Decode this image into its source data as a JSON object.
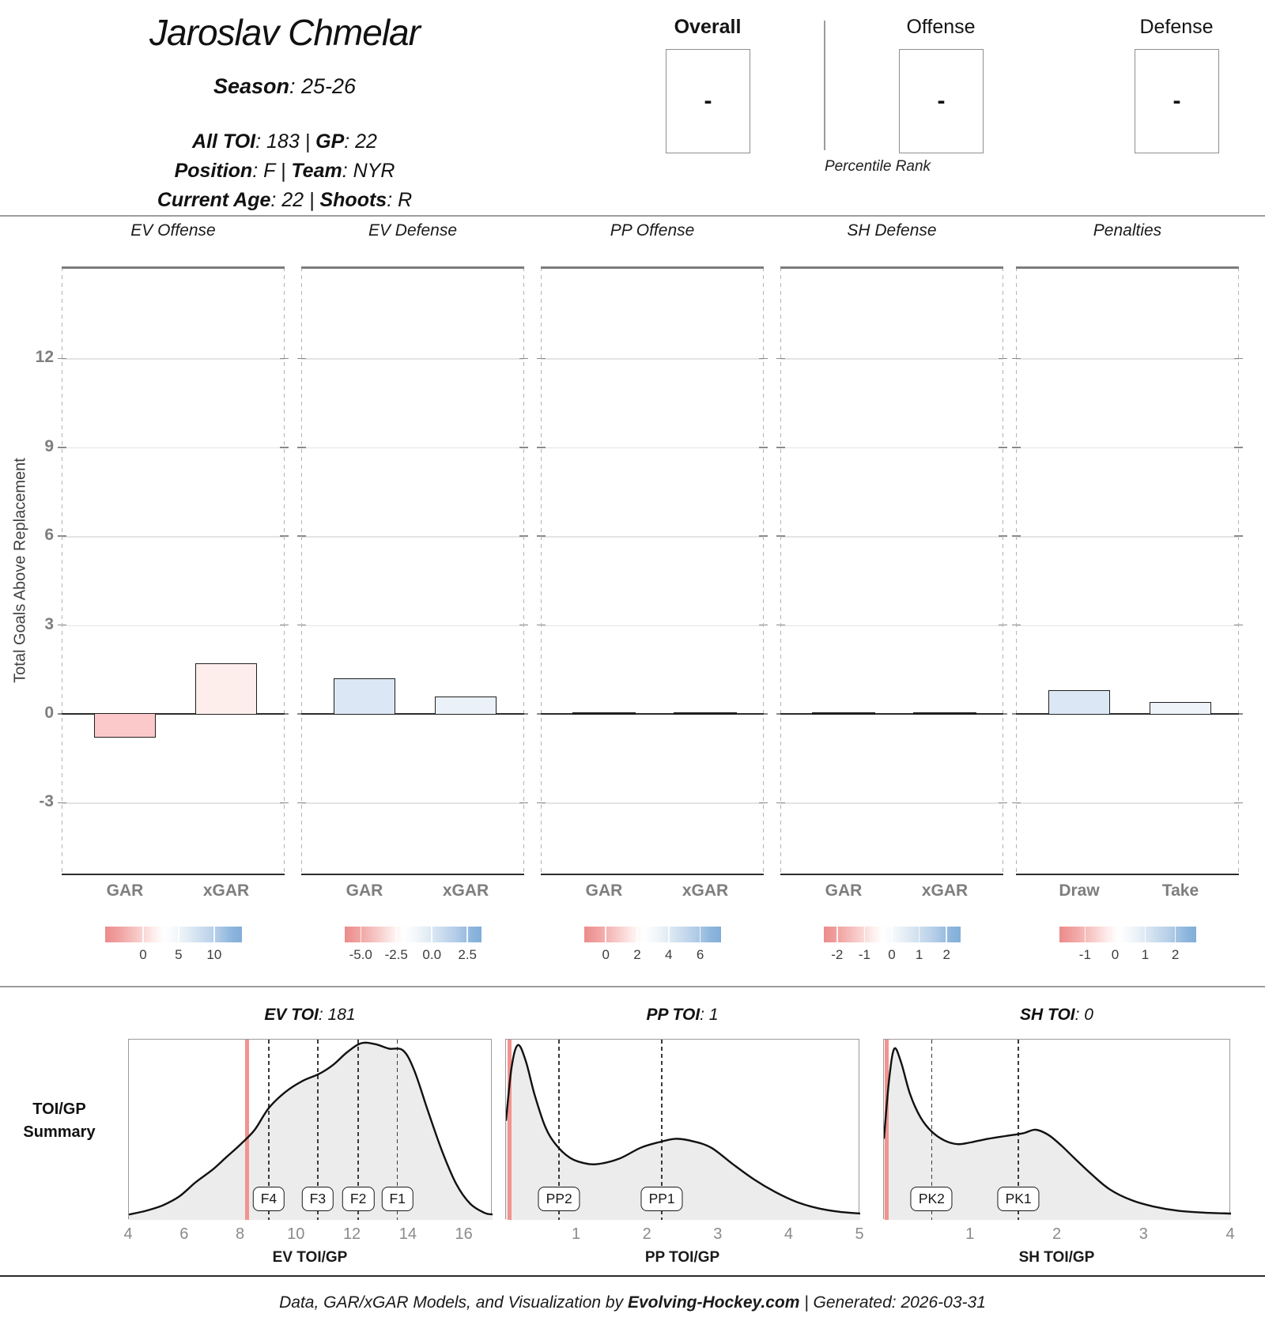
{
  "header": {
    "player_name": "Jaroslav Chmelar",
    "lines": [
      {
        "parts": [
          {
            "t": "Season",
            "b": 1
          },
          {
            "t": ": 25-26",
            "b": 0
          }
        ]
      },
      {
        "parts": [
          {
            "t": "All TOI",
            "b": 1
          },
          {
            "t": ": 183 ",
            "b": 0
          },
          {
            "t": "|",
            "b": 0
          },
          {
            "t": " ",
            "b": 0
          },
          {
            "t": "GP",
            "b": 1
          },
          {
            "t": ": 22",
            "b": 0
          }
        ]
      },
      {
        "parts": [
          {
            "t": "Position",
            "b": 1
          },
          {
            "t": ": F ",
            "b": 0
          },
          {
            "t": "|",
            "b": 0
          },
          {
            "t": " ",
            "b": 0
          },
          {
            "t": "Team",
            "b": 1
          },
          {
            "t": ": NYR",
            "b": 0
          }
        ]
      },
      {
        "parts": [
          {
            "t": "Current Age",
            "b": 1
          },
          {
            "t": ": 22 ",
            "b": 0
          },
          {
            "t": "|",
            "b": 0
          },
          {
            "t": " ",
            "b": 0
          },
          {
            "t": "Shoots",
            "b": 1
          },
          {
            "t": ": R",
            "b": 0
          }
        ]
      }
    ]
  },
  "percentile": {
    "caption": "Percentile Rank",
    "boxes": [
      {
        "label": "Overall",
        "value": "-",
        "bold": true
      },
      {
        "label": "Offense",
        "value": "-",
        "bold": false
      },
      {
        "label": "Defense",
        "value": "-",
        "bold": false
      }
    ]
  },
  "y_axis": {
    "title": "Total Goals Above Replacement",
    "ticks": [
      12,
      9,
      6,
      3,
      0,
      -3
    ],
    "ylim": [
      -5.4,
      15.1
    ]
  },
  "toi_summary_label": [
    "TOI/GP",
    "Summary"
  ],
  "footer": {
    "prefix": "Data, GAR/xGAR Models, and Visualization by ",
    "brand": "Evolving-Hockey.com",
    "suffix": " | Generated: 2026-03-31"
  },
  "chart_data": [
    {
      "type": "bar",
      "panel": "EV Offense",
      "categories": [
        "GAR",
        "xGAR"
      ],
      "values": [
        -0.8,
        1.7
      ],
      "bar_colors": [
        "#fbc9c9",
        "#fdeeec"
      ],
      "legend": {
        "labels": [
          "0",
          "5",
          "10"
        ],
        "fracs": [
          0.28,
          0.54,
          0.8
        ]
      }
    },
    {
      "type": "bar",
      "panel": "EV Defense",
      "categories": [
        "GAR",
        "xGAR"
      ],
      "values": [
        1.2,
        0.6
      ],
      "bar_colors": [
        "#dbe7f4",
        "#ebf1f8"
      ],
      "legend": {
        "labels": [
          "-5.0",
          "-2.5",
          "0.0",
          "2.5"
        ],
        "fracs": [
          0.12,
          0.38,
          0.64,
          0.9
        ]
      }
    },
    {
      "type": "bar",
      "panel": "PP Offense",
      "categories": [
        "GAR",
        "xGAR"
      ],
      "values": [
        0,
        0
      ],
      "bar_colors": [
        null,
        null
      ],
      "legend": {
        "labels": [
          "0",
          "2",
          "4",
          "6"
        ],
        "fracs": [
          0.16,
          0.39,
          0.62,
          0.85
        ]
      }
    },
    {
      "type": "bar",
      "panel": "SH Defense",
      "categories": [
        "GAR",
        "xGAR"
      ],
      "values": [
        0,
        0
      ],
      "bar_colors": [
        null,
        null
      ],
      "legend": {
        "labels": [
          "-2",
          "-1",
          "0",
          "1",
          "2"
        ],
        "fracs": [
          0.1,
          0.3,
          0.5,
          0.7,
          0.9
        ]
      }
    },
    {
      "type": "bar",
      "panel": "Penalties",
      "categories": [
        "Draw",
        "Take"
      ],
      "values": [
        0.8,
        0.4
      ],
      "bar_colors": [
        "#dbe7f4",
        "#eef3f9"
      ],
      "legend": {
        "labels": [
          "-1",
          "0",
          "1",
          "2"
        ],
        "fracs": [
          0.19,
          0.41,
          0.63,
          0.85
        ]
      }
    },
    {
      "type": "area",
      "panel": "EV TOI",
      "value": "181",
      "xlabel": "EV TOI/GP",
      "xticks": [
        4,
        6,
        8,
        10,
        12,
        14,
        16
      ],
      "xlim": [
        4,
        17
      ],
      "player_line": 8.23,
      "markers": [
        {
          "label": "F4",
          "x": 9.0
        },
        {
          "label": "F3",
          "x": 10.75
        },
        {
          "label": "F2",
          "x": 12.2
        },
        {
          "label": "F1",
          "x": 13.6
        }
      ],
      "points": [
        [
          4,
          0.03
        ],
        [
          4.6,
          0.05
        ],
        [
          5.2,
          0.08
        ],
        [
          5.8,
          0.13
        ],
        [
          6.4,
          0.21
        ],
        [
          7.0,
          0.28
        ],
        [
          7.5,
          0.35
        ],
        [
          8.0,
          0.42
        ],
        [
          8.5,
          0.5
        ],
        [
          9.0,
          0.62
        ],
        [
          9.6,
          0.71
        ],
        [
          10.2,
          0.77
        ],
        [
          10.8,
          0.81
        ],
        [
          11.3,
          0.86
        ],
        [
          11.8,
          0.93
        ],
        [
          12.3,
          0.98
        ],
        [
          12.8,
          0.975
        ],
        [
          13.3,
          0.95
        ],
        [
          13.8,
          0.94
        ],
        [
          14.2,
          0.83
        ],
        [
          14.7,
          0.6
        ],
        [
          15.2,
          0.38
        ],
        [
          15.7,
          0.2
        ],
        [
          16.2,
          0.09
        ],
        [
          16.7,
          0.04
        ],
        [
          17,
          0.03
        ]
      ]
    },
    {
      "type": "area",
      "panel": "PP TOI",
      "value": "1",
      "xlabel": "PP TOI/GP",
      "xticks": [
        1,
        2,
        3,
        4,
        5
      ],
      "xlim": [
        0,
        5
      ],
      "player_line": 0.05,
      "markers": [
        {
          "label": "PP2",
          "x": 0.75
        },
        {
          "label": "PP1",
          "x": 2.2
        }
      ],
      "points": [
        [
          0,
          0.55
        ],
        [
          0.08,
          0.85
        ],
        [
          0.17,
          0.97
        ],
        [
          0.28,
          0.88
        ],
        [
          0.4,
          0.7
        ],
        [
          0.55,
          0.52
        ],
        [
          0.7,
          0.42
        ],
        [
          0.9,
          0.345
        ],
        [
          1.1,
          0.315
        ],
        [
          1.3,
          0.31
        ],
        [
          1.6,
          0.34
        ],
        [
          1.9,
          0.4
        ],
        [
          2.15,
          0.43
        ],
        [
          2.4,
          0.45
        ],
        [
          2.65,
          0.435
        ],
        [
          2.9,
          0.4
        ],
        [
          3.2,
          0.31
        ],
        [
          3.5,
          0.225
        ],
        [
          3.8,
          0.155
        ],
        [
          4.1,
          0.1
        ],
        [
          4.4,
          0.065
        ],
        [
          4.7,
          0.045
        ],
        [
          5,
          0.035
        ]
      ]
    },
    {
      "type": "area",
      "panel": "SH TOI",
      "value": "0",
      "xlabel": "SH TOI/GP",
      "xticks": [
        1,
        2,
        3,
        4
      ],
      "xlim": [
        0,
        4
      ],
      "player_line": 0.01,
      "markers": [
        {
          "label": "PK2",
          "x": 0.55
        },
        {
          "label": "PK1",
          "x": 1.55
        }
      ],
      "points": [
        [
          0,
          0.45
        ],
        [
          0.06,
          0.78
        ],
        [
          0.12,
          0.95
        ],
        [
          0.2,
          0.87
        ],
        [
          0.3,
          0.7
        ],
        [
          0.42,
          0.57
        ],
        [
          0.55,
          0.49
        ],
        [
          0.7,
          0.44
        ],
        [
          0.85,
          0.42
        ],
        [
          1.0,
          0.43
        ],
        [
          1.2,
          0.45
        ],
        [
          1.4,
          0.465
        ],
        [
          1.6,
          0.48
        ],
        [
          1.75,
          0.5
        ],
        [
          1.9,
          0.47
        ],
        [
          2.05,
          0.41
        ],
        [
          2.2,
          0.34
        ],
        [
          2.4,
          0.25
        ],
        [
          2.6,
          0.17
        ],
        [
          2.85,
          0.11
        ],
        [
          3.1,
          0.075
        ],
        [
          3.4,
          0.05
        ],
        [
          3.7,
          0.04
        ],
        [
          4,
          0.035
        ]
      ]
    }
  ]
}
